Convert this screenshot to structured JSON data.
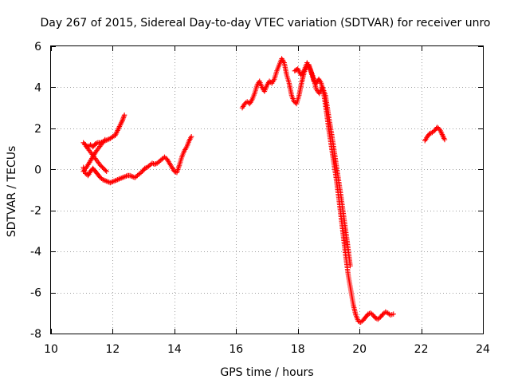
{
  "chart_data": {
    "type": "scatter",
    "title": "Day 267 of 2015, Sidereal Day-to-day VTEC variation (SDTVAR) for receiver unro",
    "xlabel": "GPS time / hours",
    "ylabel": "SDTVAR / TECUs",
    "xlim": [
      10,
      24
    ],
    "ylim": [
      -8,
      6
    ],
    "xticks": [
      10,
      12,
      14,
      16,
      18,
      20,
      22,
      24
    ],
    "yticks": [
      -8,
      -6,
      -4,
      -2,
      0,
      2,
      4,
      6
    ],
    "xtick_labels": [
      "10",
      "12",
      "14",
      "16",
      "18",
      "20",
      "22",
      "24"
    ],
    "ytick_labels": [
      "-8",
      "-6",
      "-4",
      "-2",
      "0",
      "2",
      "4",
      "6"
    ],
    "grid": true,
    "marker": "+",
    "color": "#ff0000",
    "series": [
      {
        "name": "seg-upper-left",
        "x": [
          11.05,
          11.12,
          11.2,
          11.28,
          11.36,
          11.44,
          11.52,
          11.6,
          11.68,
          11.76,
          11.84,
          11.92,
          12.0,
          12.08,
          12.16,
          12.24,
          12.32,
          12.38
        ],
        "y": [
          1.3,
          1.2,
          1.1,
          1.2,
          1.1,
          1.25,
          1.3,
          1.3,
          1.35,
          1.4,
          1.45,
          1.5,
          1.6,
          1.65,
          1.9,
          2.15,
          2.4,
          2.65
        ]
      },
      {
        "name": "seg-diag-up",
        "x": [
          11.05,
          11.15,
          11.25,
          11.35,
          11.45,
          11.55,
          11.65,
          11.75
        ],
        "y": [
          -0.1,
          0.1,
          0.35,
          0.6,
          0.85,
          1.05,
          1.25,
          1.45
        ]
      },
      {
        "name": "seg-diag-down",
        "x": [
          11.1,
          11.2,
          11.3,
          11.4,
          11.5,
          11.6,
          11.7,
          11.8
        ],
        "y": [
          1.2,
          1.0,
          0.8,
          0.6,
          0.4,
          0.2,
          0.05,
          -0.1
        ]
      },
      {
        "name": "seg-low-left",
        "x": [
          11.05,
          11.12,
          11.2,
          11.28,
          11.36,
          11.44,
          11.52,
          11.6,
          11.68,
          11.76,
          11.84,
          11.92,
          12.0,
          12.08,
          12.16,
          12.24,
          12.32,
          12.4,
          12.48,
          12.56,
          12.64,
          12.72,
          12.8,
          12.88,
          12.96,
          13.04,
          13.12,
          13.2,
          13.28,
          13.36,
          13.44,
          13.52,
          13.6,
          13.68,
          13.76,
          13.84,
          13.92,
          14.0,
          14.08,
          14.16,
          14.24,
          14.32,
          14.4,
          14.48,
          14.55
        ],
        "y": [
          0.1,
          -0.2,
          -0.3,
          -0.1,
          0.05,
          -0.1,
          -0.25,
          -0.4,
          -0.5,
          -0.55,
          -0.6,
          -0.65,
          -0.6,
          -0.55,
          -0.5,
          -0.45,
          -0.4,
          -0.35,
          -0.3,
          -0.3,
          -0.35,
          -0.4,
          -0.3,
          -0.2,
          -0.1,
          0.05,
          0.1,
          0.2,
          0.3,
          0.25,
          0.3,
          0.4,
          0.5,
          0.6,
          0.5,
          0.3,
          0.1,
          -0.1,
          -0.15,
          0.2,
          0.6,
          0.9,
          1.1,
          1.4,
          1.6
        ]
      },
      {
        "name": "seg-peak",
        "x": [
          16.2,
          16.28,
          16.36,
          16.44,
          16.52,
          16.6,
          16.68,
          16.76,
          16.84,
          16.92,
          17.0,
          17.08,
          17.16,
          17.24,
          17.32,
          17.4,
          17.48,
          17.56,
          17.64,
          17.72,
          17.8,
          17.88,
          17.96,
          18.04,
          18.12,
          18.2,
          18.28,
          18.36,
          18.44,
          18.52,
          18.6,
          18.68,
          18.76,
          18.84,
          18.92,
          19.0,
          19.08,
          19.16,
          19.24,
          19.32,
          19.4,
          19.48,
          19.56,
          19.64,
          19.72,
          19.8,
          19.88,
          19.96,
          20.04,
          20.12,
          20.2,
          20.28,
          20.36,
          20.44,
          20.52,
          20.6,
          20.68,
          20.76,
          20.84,
          20.92,
          21.0,
          21.1
        ],
        "y": [
          3.0,
          3.2,
          3.3,
          3.2,
          3.4,
          3.7,
          4.1,
          4.3,
          4.0,
          3.8,
          4.1,
          4.3,
          4.2,
          4.4,
          4.8,
          5.1,
          5.4,
          5.2,
          4.6,
          4.2,
          3.6,
          3.3,
          3.2,
          3.6,
          4.2,
          4.7,
          5.0,
          5.1,
          4.7,
          4.3,
          4.2,
          4.4,
          4.2,
          3.7,
          2.9,
          2.0,
          1.2,
          0.4,
          -0.4,
          -1.3,
          -2.3,
          -3.3,
          -4.3,
          -5.2,
          -5.9,
          -6.6,
          -7.1,
          -7.4,
          -7.45,
          -7.35,
          -7.2,
          -7.05,
          -7.0,
          -7.1,
          -7.25,
          -7.3,
          -7.2,
          -7.05,
          -6.95,
          -7.0,
          -7.1,
          -7.05
        ]
      },
      {
        "name": "seg-peak-alt",
        "x": [
          17.9,
          18.0,
          18.1,
          18.2,
          18.3,
          18.4,
          18.5,
          18.6,
          18.7,
          18.8,
          18.9,
          19.0,
          19.1,
          19.2,
          19.3,
          19.4,
          19.5,
          19.6,
          19.7
        ],
        "y": [
          4.8,
          4.9,
          4.6,
          4.8,
          5.2,
          4.9,
          4.5,
          3.9,
          3.7,
          4.0,
          3.6,
          2.6,
          1.7,
          0.7,
          -0.3,
          -1.3,
          -2.4,
          -3.5,
          -4.7
        ]
      },
      {
        "name": "seg-right",
        "x": [
          22.12,
          22.2,
          22.28,
          22.36,
          22.44,
          22.52,
          22.6,
          22.68,
          22.76
        ],
        "y": [
          1.4,
          1.6,
          1.75,
          1.8,
          1.9,
          2.05,
          1.95,
          1.7,
          1.45
        ]
      }
    ]
  }
}
